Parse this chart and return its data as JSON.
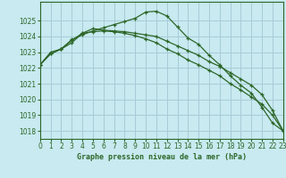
{
  "title": "Graphe pression niveau de la mer (hPa)",
  "background_color": "#c8eaf0",
  "grid_color": "#a8ccd8",
  "line_color": "#2d6628",
  "xlim": [
    0,
    23
  ],
  "ylim": [
    1017.5,
    1026.2
  ],
  "yticks": [
    1018,
    1019,
    1020,
    1021,
    1022,
    1023,
    1024,
    1025
  ],
  "xticks": [
    0,
    1,
    2,
    3,
    4,
    5,
    6,
    7,
    8,
    9,
    10,
    11,
    12,
    13,
    14,
    15,
    16,
    17,
    18,
    19,
    20,
    21,
    22,
    23
  ],
  "series": [
    [
      1022.2,
      1022.9,
      1023.2,
      1023.8,
      1024.1,
      1024.35,
      1024.55,
      1024.75,
      1024.95,
      1025.15,
      1025.55,
      1025.6,
      1025.3,
      1024.6,
      1023.9,
      1023.5,
      1022.8,
      1022.2,
      1021.5,
      1020.9,
      1020.4,
      1019.5,
      1018.5,
      1018.0
    ],
    [
      1022.2,
      1022.9,
      1023.2,
      1023.6,
      1024.2,
      1024.3,
      1024.35,
      1024.3,
      1024.2,
      1024.05,
      1023.85,
      1023.6,
      1023.2,
      1022.9,
      1022.5,
      1022.2,
      1021.85,
      1021.5,
      1021.0,
      1020.6,
      1020.15,
      1019.7,
      1019.0,
      1018.0
    ],
    [
      1022.2,
      1023.0,
      1023.2,
      1023.75,
      1024.2,
      1024.5,
      1024.4,
      1024.35,
      1024.3,
      1024.2,
      1024.1,
      1024.0,
      1023.7,
      1023.4,
      1023.1,
      1022.8,
      1022.4,
      1022.1,
      1021.7,
      1021.3,
      1020.9,
      1020.3,
      1019.3,
      1018.0
    ]
  ]
}
